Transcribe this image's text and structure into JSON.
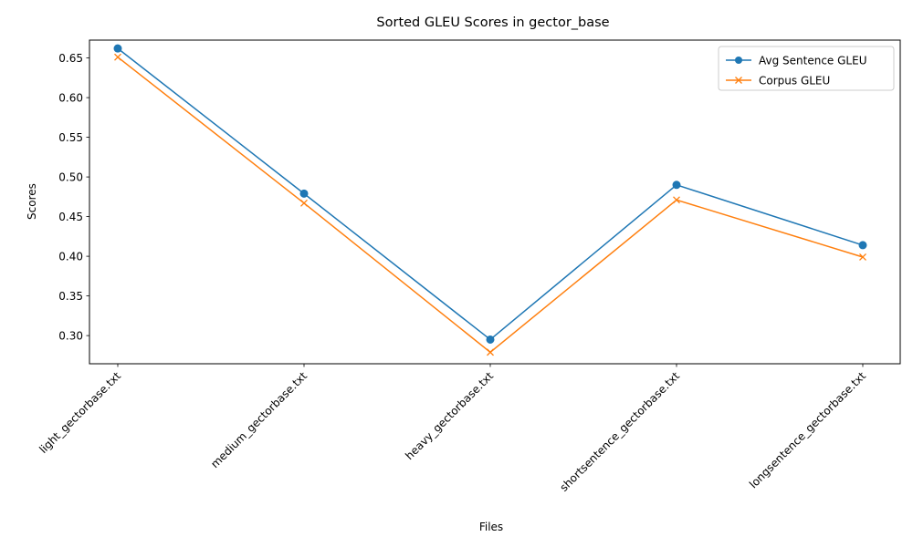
{
  "chart_data": {
    "type": "line",
    "title": "Sorted GLEU Scores in gector_base",
    "xlabel": "Files",
    "ylabel": "Scores",
    "categories": [
      "light_gectorbase.txt",
      "medium_gectorbase.txt",
      "heavy_gectorbase.txt",
      "shortsentence_gectorbase.txt",
      "longsentence_gectorbase.txt"
    ],
    "series": [
      {
        "name": "Avg Sentence GLEU",
        "marker": "circle",
        "color": "#1f77b4",
        "values": [
          0.662,
          0.479,
          0.295,
          0.49,
          0.414
        ]
      },
      {
        "name": "Corpus GLEU",
        "marker": "x",
        "color": "#ff7f0e",
        "values": [
          0.651,
          0.467,
          0.279,
          0.471,
          0.399
        ]
      }
    ],
    "ylim": [
      0.2645,
      0.6725
    ],
    "yticks": [
      0.3,
      0.35,
      0.4,
      0.45,
      0.5,
      0.55,
      0.6,
      0.65
    ],
    "ytick_labels": [
      "0.30",
      "0.35",
      "0.40",
      "0.45",
      "0.50",
      "0.55",
      "0.60",
      "0.65"
    ],
    "grid": false,
    "legend_position": "top-right"
  }
}
